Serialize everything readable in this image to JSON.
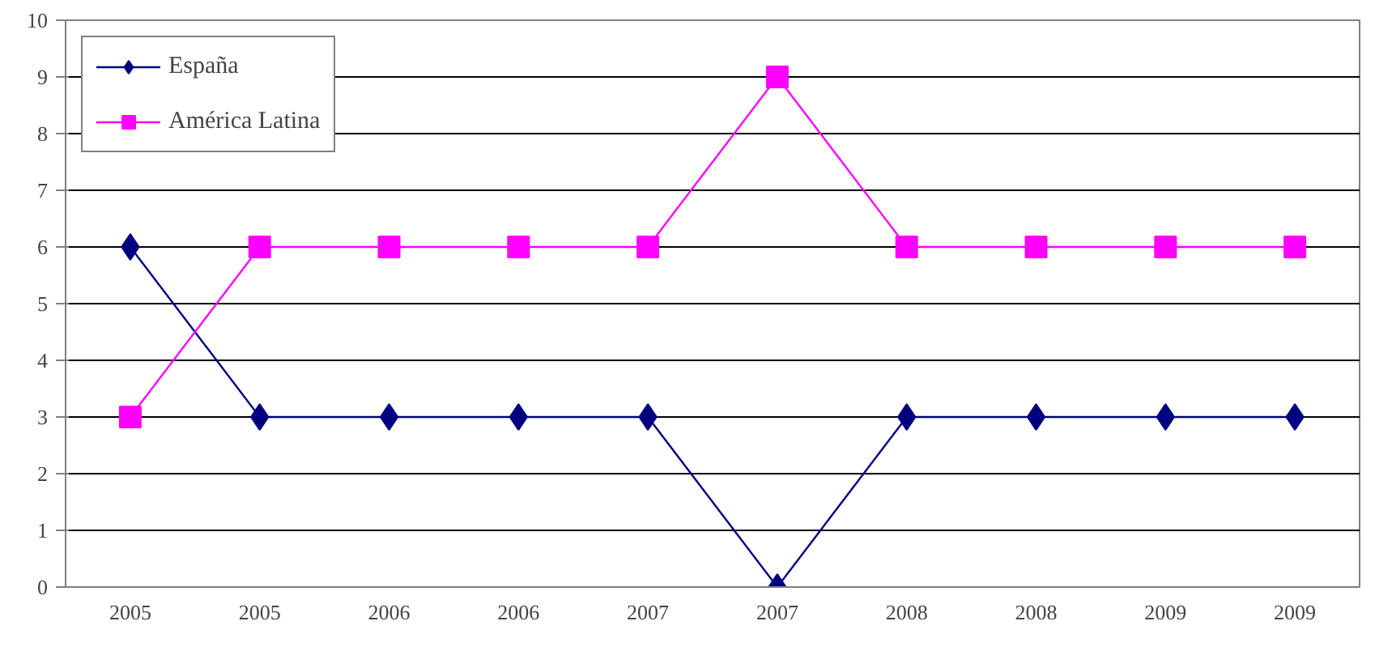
{
  "chart_data": {
    "type": "line",
    "categories": [
      "2005",
      "2005",
      "2006",
      "2006",
      "2007",
      "2007",
      "2008",
      "2008",
      "2009",
      "2009"
    ],
    "series": [
      {
        "name": "España",
        "color": "#000080",
        "marker": "diamond",
        "values": [
          6,
          3,
          3,
          3,
          3,
          0,
          3,
          3,
          3,
          3
        ]
      },
      {
        "name": "América Latina",
        "color": "#ff00ff",
        "marker": "square",
        "values": [
          3,
          6,
          6,
          6,
          6,
          9,
          6,
          6,
          6,
          6
        ]
      }
    ],
    "ylim": [
      0,
      10
    ],
    "yticks": [
      0,
      1,
      2,
      3,
      4,
      5,
      6,
      7,
      8,
      9,
      10
    ],
    "grid": "y",
    "legend": "top left",
    "line_style": "solid"
  }
}
